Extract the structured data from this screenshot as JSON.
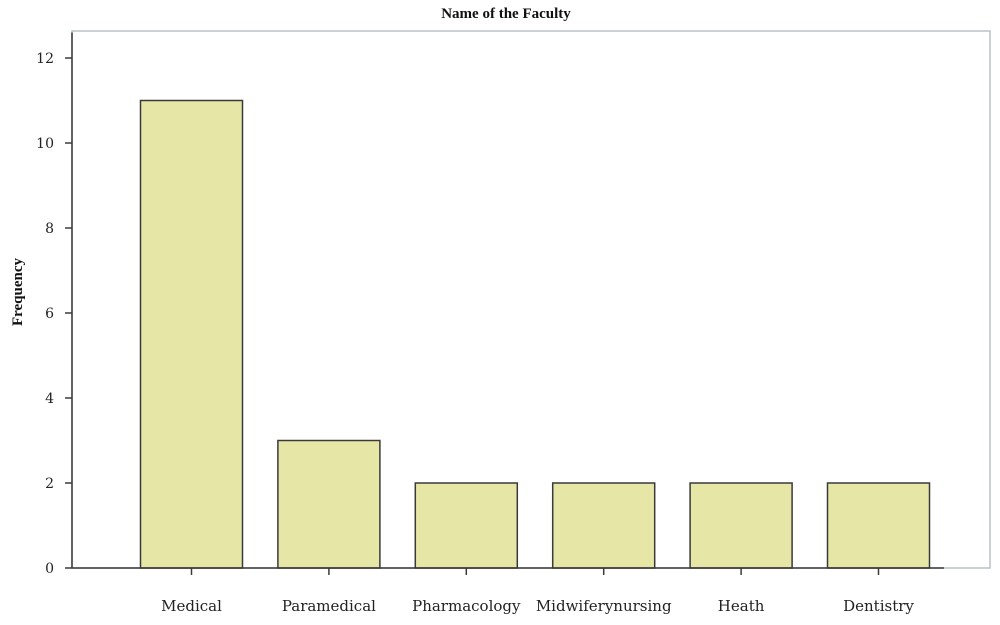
{
  "chart_data": {
    "type": "bar",
    "title": "Name of the Faculty",
    "xlabel": "",
    "ylabel": "Frequency",
    "categories": [
      "Medical",
      "Paramedical",
      "Pharmacology",
      "Midwiferynursing",
      "Heath",
      "Dentistry"
    ],
    "values": [
      11,
      3,
      2,
      2,
      2,
      2
    ],
    "ylim": [
      0,
      12.6
    ],
    "yticks": [
      0,
      2,
      4,
      6,
      8,
      10,
      12
    ],
    "grid": false,
    "colors": {
      "bar_fill": "#e6e6a6",
      "bar_stroke": "#3a3a3a",
      "plot_border": "#b9c3c6",
      "axis": "#3a3a3a"
    }
  }
}
